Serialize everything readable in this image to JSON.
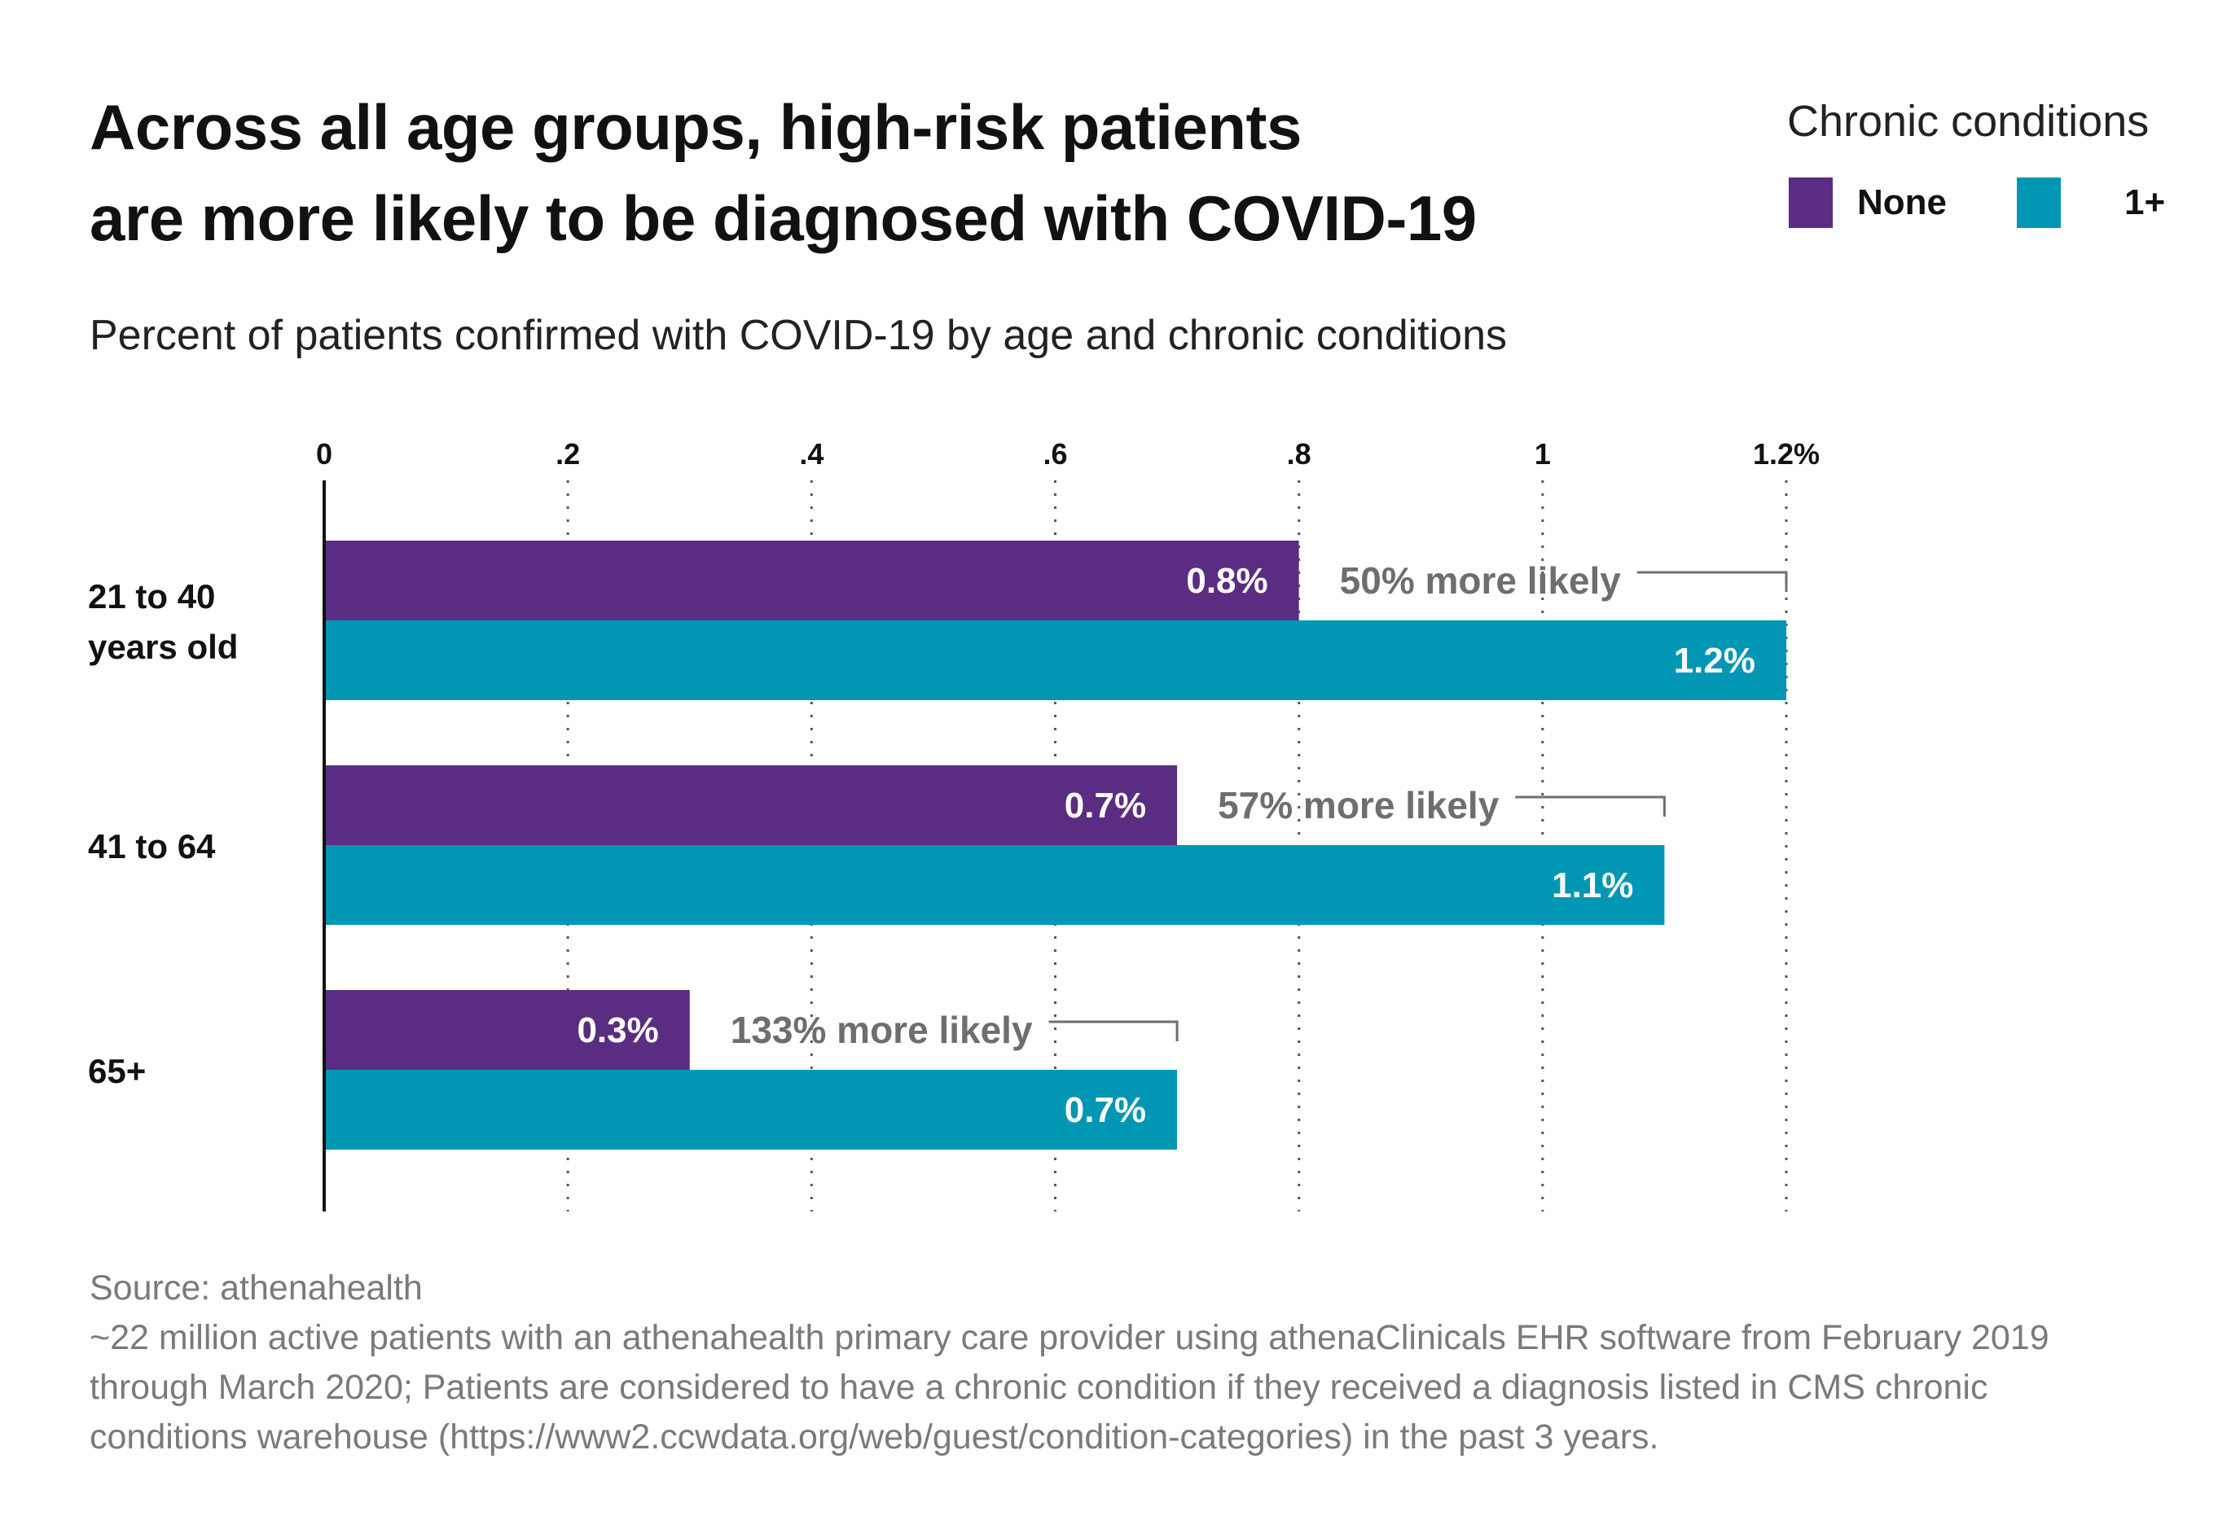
{
  "title_lines": [
    "Across all age groups, high-risk patients",
    "are more likely to be diagnosed with COVID-19"
  ],
  "subtitle": "Percent of patients confirmed with COVID-19 by age and chronic conditions",
  "legend": {
    "title": "Chronic conditions",
    "items": [
      {
        "label": "None",
        "color": "#5a2d82"
      },
      {
        "label": "1+",
        "color": "#0096b4"
      }
    ]
  },
  "colors": {
    "none": "#5a2d82",
    "one_plus": "#0096b4",
    "annotation": "#6e6e6e",
    "axis": "#111111",
    "grid": "#555555"
  },
  "chart_data": {
    "type": "bar",
    "orientation": "horizontal",
    "categories": [
      "21 to 40\nyears old",
      "41 to 64",
      "65+"
    ],
    "series": [
      {
        "name": "None",
        "values": [
          0.8,
          0.7,
          0.3
        ],
        "labels": [
          "0.8%",
          "0.7%",
          "0.3%"
        ]
      },
      {
        "name": "1+",
        "values": [
          1.2,
          1.1,
          0.7
        ],
        "labels": [
          "1.2%",
          "1.1%",
          "0.7%"
        ]
      }
    ],
    "annotations": [
      "50% more likely",
      "57% more likely",
      "133% more likely"
    ],
    "x_ticks": [
      {
        "value": 0,
        "label": "0"
      },
      {
        "value": 0.2,
        "label": ".2"
      },
      {
        "value": 0.4,
        "label": ".4"
      },
      {
        "value": 0.6,
        "label": ".6"
      },
      {
        "value": 0.8,
        "label": ".8"
      },
      {
        "value": 1.0,
        "label": "1"
      },
      {
        "value": 1.2,
        "label": "1.2%"
      }
    ],
    "xlim": [
      0,
      1.2
    ],
    "grid": "dotted vertical",
    "legend_position": "top-right"
  },
  "source_lines": [
    "Source: athenahealth",
    "~22 million active patients with an athenahealth primary care provider using athenaClinicals EHR software from February 2019",
    "through March 2020; Patients are considered to have a chronic condition if they received a diagnosis listed in CMS chronic",
    "conditions warehouse (https://www2.ccwdata.org/web/guest/condition-categories) in the past 3 years."
  ]
}
